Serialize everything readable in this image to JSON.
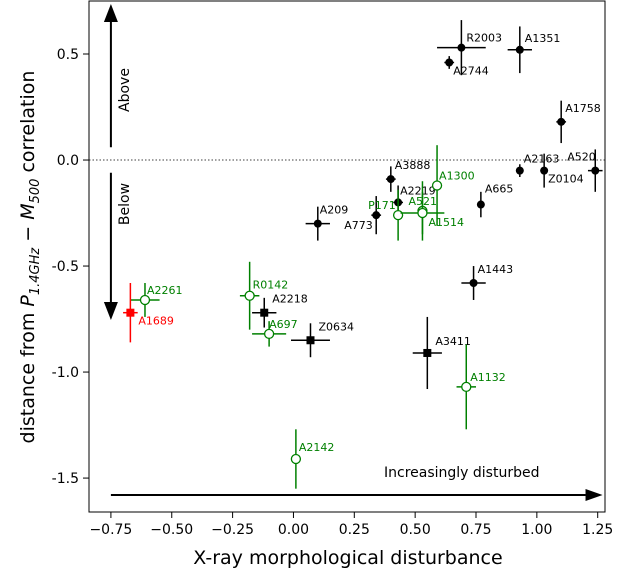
{
  "chart_data": {
    "type": "scatter",
    "title": "",
    "xlabel": "X-ray morphological disturbance",
    "ylabel_prefix": "distance from ",
    "ylabel_p": "P",
    "ylabel_p_sub": "1.4GHz",
    "ylabel_dash": " − ",
    "ylabel_m": "M",
    "ylabel_m_sub": "500",
    "ylabel_suffix": " correlation",
    "xlim": [
      -0.84,
      1.28
    ],
    "ylim": [
      -1.66,
      0.75
    ],
    "x_ticks": [
      -0.75,
      -0.5,
      -0.25,
      0.0,
      0.25,
      0.5,
      0.75,
      1.0,
      1.25
    ],
    "x_tick_labels": [
      "−0.75",
      "−0.50",
      "−0.25",
      "0.00",
      "0.25",
      "0.50",
      "0.75",
      "1.00",
      "1.25"
    ],
    "y_ticks": [
      0.5,
      0.0,
      -0.5,
      -1.0,
      -1.5
    ],
    "y_tick_labels": [
      "0.5",
      "0.0",
      "-0.5",
      "-1.0",
      "-1.5"
    ],
    "zero_line": 0.0,
    "annotations": {
      "above": "Above",
      "below": "Below",
      "disturbed": "Increasingly disturbed"
    },
    "colors": {
      "black": "#000000",
      "green": "#008000",
      "red": "#ff0000"
    },
    "points": [
      {
        "label": "R2003",
        "x": 0.69,
        "y": 0.53,
        "xerr": 0.1,
        "yerr": 0.13,
        "marker": "circle",
        "color": "black",
        "lx": 5,
        "ly": -6
      },
      {
        "label": "A1351",
        "x": 0.93,
        "y": 0.52,
        "xerr": 0.05,
        "yerr": 0.11,
        "marker": "circle",
        "color": "black",
        "lx": 5,
        "ly": -8
      },
      {
        "label": "A2744",
        "x": 0.64,
        "y": 0.46,
        "xerr": 0.02,
        "yerr": 0.03,
        "marker": "circle",
        "color": "black",
        "lx": 4,
        "ly": 12
      },
      {
        "label": "A1758",
        "x": 1.1,
        "y": 0.18,
        "xerr": 0.02,
        "yerr": 0.1,
        "marker": "circle",
        "color": "black",
        "lx": 4,
        "ly": -10
      },
      {
        "label": "A2163",
        "x": 0.93,
        "y": -0.05,
        "xerr": 0.01,
        "yerr": 0.03,
        "marker": "circle",
        "color": "black",
        "lx": 4,
        "ly": -8
      },
      {
        "label": "A520",
        "x": 1.24,
        "y": -0.05,
        "xerr": 0.03,
        "yerr": 0.1,
        "marker": "circle",
        "color": "black",
        "lx": -28,
        "ly": -10
      },
      {
        "label": "Z0104",
        "x": 1.03,
        "y": -0.05,
        "xerr": 0.01,
        "yerr": 0.08,
        "marker": "circle",
        "color": "black",
        "lx": 4,
        "ly": 12
      },
      {
        "label": "A3888",
        "x": 0.4,
        "y": -0.09,
        "xerr": 0.02,
        "yerr": 0.06,
        "marker": "circle",
        "color": "black",
        "lx": 4,
        "ly": -10
      },
      {
        "label": "A2219",
        "x": 0.43,
        "y": -0.2,
        "xerr": 0.02,
        "yerr": 0.08,
        "marker": "circle",
        "color": "black",
        "lx": 2,
        "ly": -8
      },
      {
        "label": "A665",
        "x": 0.77,
        "y": -0.21,
        "xerr": 0.01,
        "yerr": 0.06,
        "marker": "circle",
        "color": "black",
        "lx": 4,
        "ly": -12
      },
      {
        "label": "A209",
        "x": 0.1,
        "y": -0.3,
        "xerr": 0.05,
        "yerr": 0.08,
        "marker": "circle",
        "color": "black",
        "lx": 2,
        "ly": -10
      },
      {
        "label": "A773",
        "x": 0.34,
        "y": -0.26,
        "xerr": 0.02,
        "yerr": 0.09,
        "marker": "circle",
        "color": "black",
        "lx": -32,
        "ly": 14
      },
      {
        "label": "A1443",
        "x": 0.74,
        "y": -0.58,
        "xerr": 0.05,
        "yerr": 0.08,
        "marker": "circle",
        "color": "black",
        "lx": 4,
        "ly": -10
      },
      {
        "label": "A2218",
        "x": -0.12,
        "y": -0.72,
        "xerr": 0.05,
        "yerr": 0.07,
        "marker": "square",
        "color": "black",
        "lx": 8,
        "ly": -10
      },
      {
        "label": "Z0634",
        "x": 0.07,
        "y": -0.85,
        "xerr": 0.08,
        "yerr": 0.08,
        "marker": "square",
        "color": "black",
        "lx": 8,
        "ly": -10
      },
      {
        "label": "A3411",
        "x": 0.55,
        "y": -0.91,
        "xerr": 0.06,
        "yerr": 0.17,
        "marker": "square",
        "color": "black",
        "lx": 8,
        "ly": -8
      },
      {
        "label": "A1300",
        "x": 0.59,
        "y": -0.12,
        "xerr": 0.02,
        "yerr": 0.19,
        "marker": "open",
        "color": "green",
        "lx": 2,
        "ly": -6
      },
      {
        "label": "A521",
        "x": 0.53,
        "y": -0.24,
        "xerr": 0.02,
        "yerr": 0.14,
        "marker": "open",
        "color": "green",
        "lx": -14,
        "ly": -6
      },
      {
        "label": "P171",
        "x": 0.43,
        "y": -0.26,
        "xerr": 0.02,
        "yerr": 0.12,
        "marker": "open",
        "color": "green",
        "lx": -30,
        "ly": -6
      },
      {
        "label": "A1514",
        "x": 0.53,
        "y": -0.25,
        "xerr": 0.09,
        "yerr": 0.1,
        "marker": "open",
        "color": "green",
        "lx": 6,
        "ly": 13
      },
      {
        "label": "A2261",
        "x": -0.61,
        "y": -0.66,
        "xerr": 0.06,
        "yerr": 0.08,
        "marker": "open",
        "color": "green",
        "lx": 2,
        "ly": -6
      },
      {
        "label": "R0142",
        "x": -0.18,
        "y": -0.64,
        "xerr": 0.04,
        "yerr": 0.16,
        "marker": "open",
        "color": "green",
        "lx": 3,
        "ly": -7
      },
      {
        "label": "A697",
        "x": -0.1,
        "y": -0.82,
        "xerr": 0.07,
        "yerr": 0.06,
        "marker": "open",
        "color": "green",
        "lx": 0,
        "ly": -6
      },
      {
        "label": "A1132",
        "x": 0.71,
        "y": -1.07,
        "xerr": 0.04,
        "yerr": 0.2,
        "marker": "open",
        "color": "green",
        "lx": 4,
        "ly": -6
      },
      {
        "label": "A2142",
        "x": 0.01,
        "y": -1.41,
        "xerr": 0.02,
        "yerr": 0.14,
        "marker": "open",
        "color": "green",
        "lx": 3,
        "ly": -8
      },
      {
        "label": "A1689",
        "x": -0.67,
        "y": -0.72,
        "xerr": 0.03,
        "yerr": 0.14,
        "marker": "square",
        "color": "red",
        "lx": 8,
        "ly": 12
      }
    ]
  }
}
